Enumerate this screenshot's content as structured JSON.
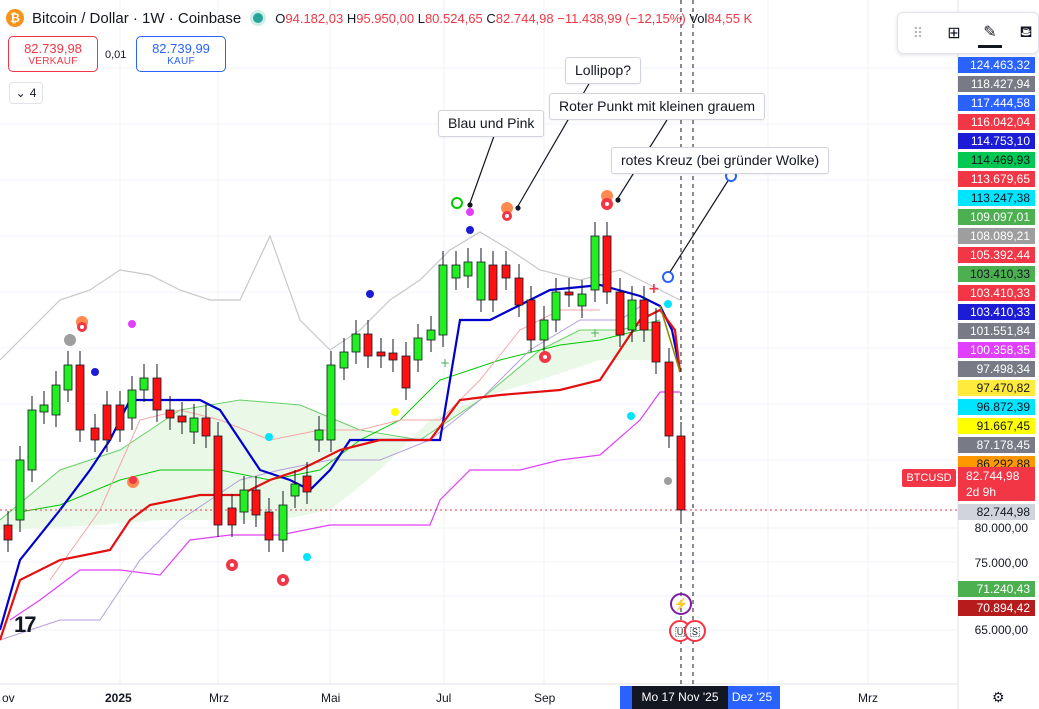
{
  "header": {
    "logo_symbol": "₿",
    "title": "Bitcoin / Dollar · 1W · Coinbase",
    "ohlc": [
      {
        "k": "O",
        "v": "94.182,03"
      },
      {
        "k": "H",
        "v": "95.950,00"
      },
      {
        "k": "L",
        "v": "80.524,65"
      },
      {
        "k": "C",
        "v": "82.744,98"
      }
    ],
    "change": "−11.438,99 (−12,15%)",
    "vol_label": "Vol",
    "vol_value": "84,55 K"
  },
  "trade": {
    "sell_price": "82.739,98",
    "sell_label": "VERKAUF",
    "spread": "0,01",
    "buy_price": "82.739,99",
    "buy_label": "KAUF"
  },
  "indicators_collapse": {
    "count": "4",
    "icon": "chevron-down-icon"
  },
  "toolbar": {
    "drag_icon": "drag-handle-icon",
    "layout_icon": "object-tree-icon",
    "pen_icon": "pencil-icon",
    "fill_icon": "paint-bucket-icon"
  },
  "callouts": [
    {
      "text": "Lollipop?"
    },
    {
      "text": "Roter Punkt mit kleinen grauem"
    },
    {
      "text": "Blau und Pink"
    },
    {
      "text": "rotes Kreuz (bei gründer Wolke)"
    }
  ],
  "price_labels": [
    {
      "text": "124.463,32",
      "bg": "#2962ff",
      "fg": "#ffffff"
    },
    {
      "text": "118.427,94",
      "bg": "#787b86",
      "fg": "#ffffff"
    },
    {
      "text": "117.444,58",
      "bg": "#2962ff",
      "fg": "#ffffff"
    },
    {
      "text": "116.042,04",
      "bg": "#f23645",
      "fg": "#ffffff"
    },
    {
      "text": "114.753,10",
      "bg": "#1c1cd6",
      "fg": "#ffffff"
    },
    {
      "text": "114.469,93",
      "bg": "#00c853",
      "fg": "#131722"
    },
    {
      "text": "113.679,65",
      "bg": "#f23645",
      "fg": "#ffffff"
    },
    {
      "text": "113.247,38",
      "bg": "#00e5ff",
      "fg": "#131722"
    },
    {
      "text": "109.097,01",
      "bg": "#4caf50",
      "fg": "#ffffff"
    },
    {
      "text": "108.089,21",
      "bg": "#9e9e9e",
      "fg": "#ffffff"
    },
    {
      "text": "105.392,44",
      "bg": "#f23645",
      "fg": "#ffffff"
    },
    {
      "text": "103.410,33",
      "bg": "#4caf50",
      "fg": "#131722"
    },
    {
      "text": "103.410,33",
      "bg": "#f23645",
      "fg": "#ffffff"
    },
    {
      "text": "103.410,33",
      "bg": "#1c1cd6",
      "fg": "#ffffff"
    },
    {
      "text": "101.551,84",
      "bg": "#787b86",
      "fg": "#ffffff"
    },
    {
      "text": "100.358,35",
      "bg": "#e040fb",
      "fg": "#ffffff"
    },
    {
      "text": "97.498,34",
      "bg": "#787b86",
      "fg": "#ffffff"
    },
    {
      "text": "97.470,82",
      "bg": "#ffeb3b",
      "fg": "#131722"
    },
    {
      "text": "96.872,39",
      "bg": "#00e5ff",
      "fg": "#131722"
    },
    {
      "text": "91.667,45",
      "bg": "#ffff00",
      "fg": "#131722"
    },
    {
      "text": "87.178,45",
      "bg": "#787b86",
      "fg": "#ffffff"
    },
    {
      "text": "86.292,88",
      "bg": "#ff9800",
      "fg": "#131722"
    },
    {
      "text": "82.744,98",
      "bg": "#d1d4dc",
      "fg": "#131722"
    },
    {
      "text": "71.240,43",
      "bg": "#4caf50",
      "fg": "#ffffff"
    },
    {
      "text": "70.894,42",
      "bg": "#b71c1c",
      "fg": "#ffffff"
    }
  ],
  "price_ticks": [
    "80.000,00",
    "75.000,00",
    "65.000,00"
  ],
  "current": {
    "symbol": "BTCUSD",
    "price": "82.744,98",
    "countdown": "2d 9h"
  },
  "x_axis": {
    "ticks": [
      {
        "text": "ov",
        "bold": false
      },
      {
        "text": "2025",
        "bold": true
      },
      {
        "text": "Mrz",
        "bold": false
      },
      {
        "text": "Mai",
        "bold": false
      },
      {
        "text": "Jul",
        "bold": false
      },
      {
        "text": "Sep",
        "bold": false
      },
      {
        "text": "Mrz",
        "bold": false
      }
    ],
    "highlight_date": "Mo 17 Nov '25",
    "highlight_next": "Dez '25",
    "settings_icon": "gear-icon"
  },
  "tv_logo": "17",
  "colors": {
    "up": "#22ee22",
    "down": "#ff1111",
    "kijun": "#0000cc",
    "tenkan": "#e31010",
    "cloud": "#e8f7e6"
  }
}
